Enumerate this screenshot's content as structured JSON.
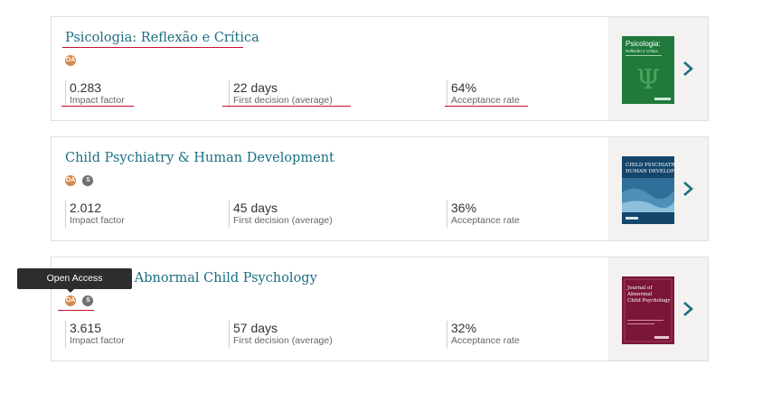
{
  "journals": [
    {
      "title": "Psicologia: Reflexão e Crítica",
      "badges": [
        "OA"
      ],
      "impact_value": "0.283",
      "impact_label": "Impact factor",
      "decision_value": "22 days",
      "decision_label": "First decision (average)",
      "acceptance_value": "64%",
      "acceptance_label": "Acceptance rate",
      "cover_color": "#1f7a3c"
    },
    {
      "title": "Child Psychiatry & Human Development",
      "badges": [
        "OA",
        "S"
      ],
      "impact_value": "2.012",
      "impact_label": "Impact factor",
      "decision_value": "45 days",
      "decision_label": "First decision (average)",
      "acceptance_value": "36%",
      "acceptance_label": "Acceptance rate",
      "cover_color": "#14456b"
    },
    {
      "title": "Journal of Abnormal Child Psychology",
      "badges": [
        "OA",
        "S"
      ],
      "impact_value": "3.615",
      "impact_label": "Impact factor",
      "decision_value": "57 days",
      "decision_label": "First decision (average)",
      "acceptance_value": "32%",
      "acceptance_label": "Acceptance rate",
      "cover_color": "#7a1737"
    }
  ],
  "badge_labels": {
    "oa": "OA",
    "s": "S"
  },
  "tooltip": "Open Access",
  "colors": {
    "title": "#1b6f83",
    "accent_red": "#c8102e",
    "oa_badge": "#d48b4f",
    "s_badge": "#6f6f6f"
  }
}
